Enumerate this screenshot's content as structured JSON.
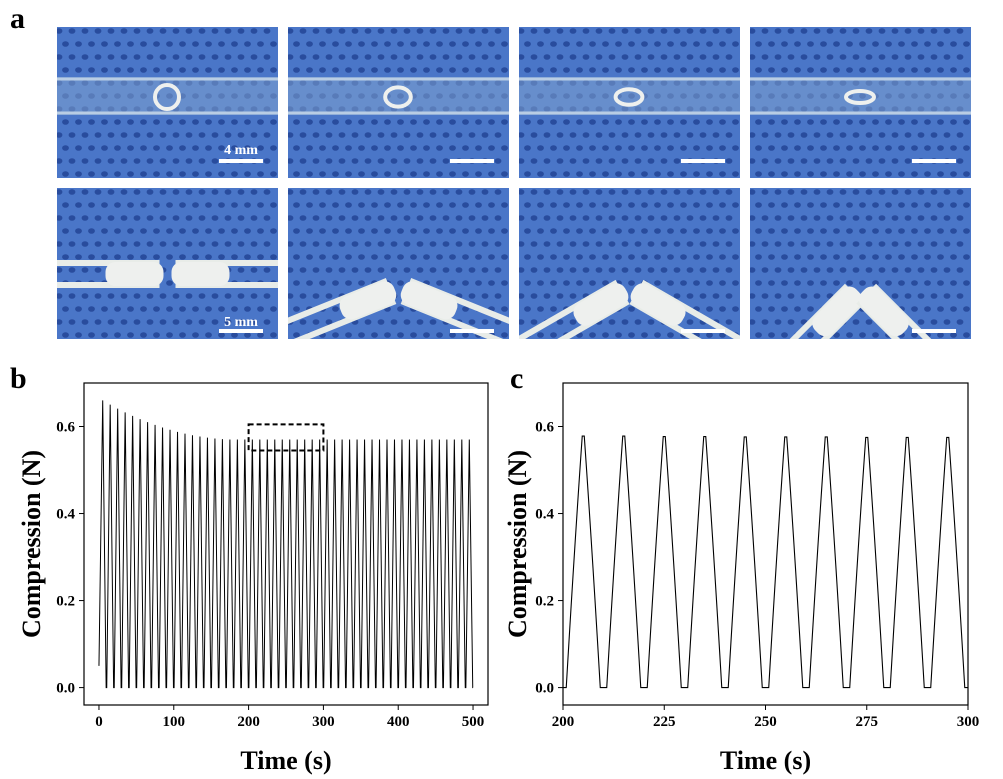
{
  "panels": {
    "a": "a",
    "b": "b",
    "c": "c"
  },
  "photos": {
    "background_color": "#4a76c8",
    "dot_color": "#1f3f8f",
    "material_color": "#eef0ee",
    "scale_bar_top": "4 mm",
    "scale_bar_bottom": "5 mm",
    "top_row_ring_ovality": [
      1.0,
      0.8,
      0.65,
      0.5
    ],
    "bottom_row_bend_angle_deg": [
      0,
      22,
      30,
      45
    ]
  },
  "chart_data": [
    {
      "id": "b",
      "type": "line",
      "xlabel": "Time (s)",
      "ylabel": "Compression (N)",
      "xlim": [
        -20,
        520
      ],
      "ylim": [
        -0.04,
        0.7
      ],
      "xticks": [
        0,
        100,
        200,
        300,
        400,
        500
      ],
      "xtick_labels": [
        "0",
        "100",
        "200",
        "300",
        "400",
        "500"
      ],
      "yticks": [
        0.0,
        0.2,
        0.4,
        0.6
      ],
      "ytick_labels": [
        "0.0",
        "0.2",
        "0.4",
        "0.6"
      ],
      "cycle_period_s": 10,
      "first_peak_s": 5,
      "num_cycles": 50,
      "peak_start": 0.66,
      "peak_plateau": 0.57,
      "baseline": 0.0,
      "highlight_box": {
        "x": [
          200,
          300
        ],
        "y": [
          0.545,
          0.605
        ]
      }
    },
    {
      "id": "c",
      "type": "line",
      "xlabel": "Time (s)",
      "ylabel": "Compression (N)",
      "xlim": [
        200,
        300
      ],
      "ylim": [
        -0.04,
        0.7
      ],
      "xticks": [
        200,
        225,
        250,
        275,
        300
      ],
      "xtick_labels": [
        "200",
        "225",
        "250",
        "275",
        "300"
      ],
      "yticks": [
        0.0,
        0.2,
        0.4,
        0.6
      ],
      "ytick_labels": [
        "0.0",
        "0.2",
        "0.4",
        "0.6"
      ],
      "peak_times_s": [
        205,
        215,
        225,
        235,
        245,
        255,
        265,
        275,
        285,
        295
      ],
      "peak_values": [
        0.578,
        0.578,
        0.577,
        0.577,
        0.576,
        0.576,
        0.576,
        0.575,
        0.575,
        0.575
      ],
      "baseline": 0.0
    }
  ]
}
